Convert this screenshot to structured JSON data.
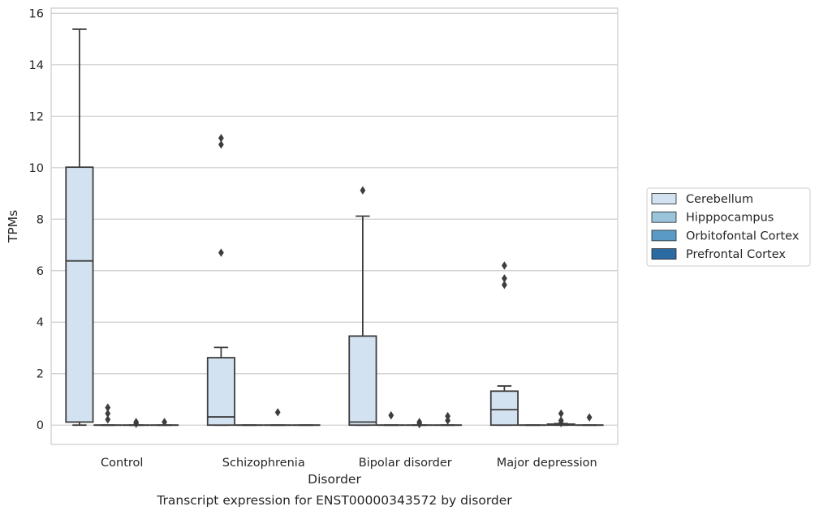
{
  "caption": "Transcript expression for ENST00000343572 by disorder",
  "chart_data": {
    "type": "box",
    "xlabel": "Disorder",
    "ylabel": "TPMs",
    "ylim": [
      -0.75,
      16.2
    ],
    "yticks": [
      0,
      2,
      4,
      6,
      8,
      10,
      12,
      14,
      16
    ],
    "grid": "horizontal",
    "legend_position": "right",
    "categories": [
      "Control",
      "Schizophrenia",
      "Bipolar disorder",
      "Major depression"
    ],
    "series": [
      {
        "name": "Cerebellum",
        "color": "#d3e2f1",
        "boxes": [
          {
            "whislo": 0.0,
            "q1": 0.12,
            "med": 6.38,
            "q3": 10.02,
            "whishi": 15.38,
            "fliers": []
          },
          {
            "whislo": 0.0,
            "q1": 0.0,
            "med": 0.32,
            "q3": 2.62,
            "whishi": 3.02,
            "fliers": [
              6.7,
              10.9,
              11.15
            ]
          },
          {
            "whislo": 0.0,
            "q1": 0.0,
            "med": 0.12,
            "q3": 3.46,
            "whishi": 8.12,
            "fliers": [
              9.12
            ]
          },
          {
            "whislo": 0.0,
            "q1": 0.0,
            "med": 0.6,
            "q3": 1.32,
            "whishi": 1.52,
            "fliers": [
              5.45,
              5.7,
              6.2
            ]
          }
        ]
      },
      {
        "name": "Hipppocampus",
        "color": "#9ac3dc",
        "boxes": [
          {
            "whislo": 0.0,
            "q1": 0.0,
            "med": 0.0,
            "q3": 0.0,
            "whishi": 0.0,
            "fliers": [
              0.22,
              0.45,
              0.68
            ]
          },
          {
            "whislo": 0.0,
            "q1": 0.0,
            "med": 0.0,
            "q3": 0.0,
            "whishi": 0.0,
            "fliers": []
          },
          {
            "whislo": 0.0,
            "q1": 0.0,
            "med": 0.0,
            "q3": 0.0,
            "whishi": 0.0,
            "fliers": [
              0.38
            ]
          },
          {
            "whislo": 0.0,
            "q1": 0.0,
            "med": 0.0,
            "q3": 0.0,
            "whishi": 0.0,
            "fliers": []
          }
        ]
      },
      {
        "name": "Orbitofontal Cortex",
        "color": "#5a9ac6",
        "boxes": [
          {
            "whislo": 0.0,
            "q1": 0.0,
            "med": 0.0,
            "q3": 0.0,
            "whishi": 0.0,
            "fliers": [
              0.05,
              0.12
            ]
          },
          {
            "whislo": 0.0,
            "q1": 0.0,
            "med": 0.0,
            "q3": 0.0,
            "whishi": 0.0,
            "fliers": [
              0.5
            ]
          },
          {
            "whislo": 0.0,
            "q1": 0.0,
            "med": 0.0,
            "q3": 0.0,
            "whishi": 0.0,
            "fliers": [
              0.04,
              0.12
            ]
          },
          {
            "whislo": 0.0,
            "q1": 0.0,
            "med": 0.02,
            "q3": 0.04,
            "whishi": 0.06,
            "fliers": [
              0.08,
              0.18,
              0.45
            ]
          }
        ]
      },
      {
        "name": "Prefrontal Cortex",
        "color": "#2c6aa4",
        "boxes": [
          {
            "whislo": 0.0,
            "q1": 0.0,
            "med": 0.0,
            "q3": 0.0,
            "whishi": 0.0,
            "fliers": [
              0.12
            ]
          },
          {
            "whislo": 0.0,
            "q1": 0.0,
            "med": 0.0,
            "q3": 0.0,
            "whishi": 0.0,
            "fliers": []
          },
          {
            "whislo": 0.0,
            "q1": 0.0,
            "med": 0.0,
            "q3": 0.0,
            "whishi": 0.0,
            "fliers": [
              0.18,
              0.35
            ]
          },
          {
            "whislo": 0.0,
            "q1": 0.0,
            "med": 0.0,
            "q3": 0.0,
            "whishi": 0.0,
            "fliers": [
              0.3
            ]
          }
        ]
      }
    ]
  }
}
